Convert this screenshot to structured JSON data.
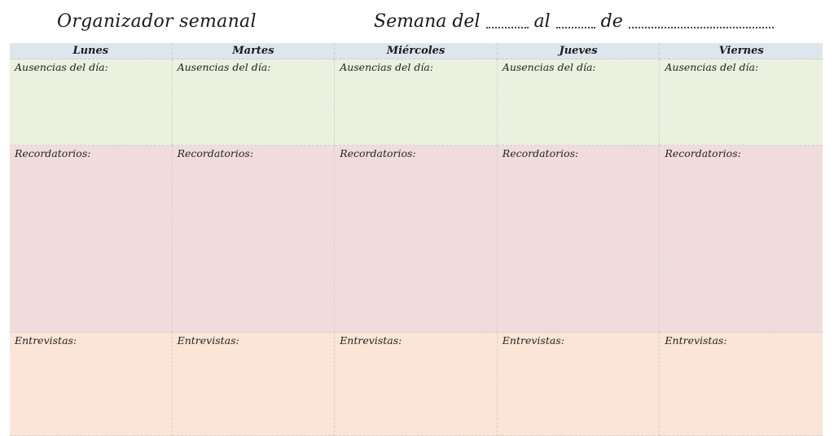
{
  "header": {
    "title": "Organizador semanal",
    "week_word": "Semana del",
    "al_word": "al",
    "de_word": "de"
  },
  "days": [
    {
      "label": "Lunes"
    },
    {
      "label": "Martes"
    },
    {
      "label": "Miércoles"
    },
    {
      "label": "Jueves"
    },
    {
      "label": "Viernes"
    }
  ],
  "sections": {
    "absences": "Ausencias del día:",
    "reminders": "Recordatorios:",
    "interviews": "Entrevistas:"
  },
  "colors": {
    "header_bg": "#dde6ef",
    "absences_bg": "#ebf1de",
    "reminders_bg": "#f1dcdc",
    "interviews_bg": "#fbe5d6"
  }
}
